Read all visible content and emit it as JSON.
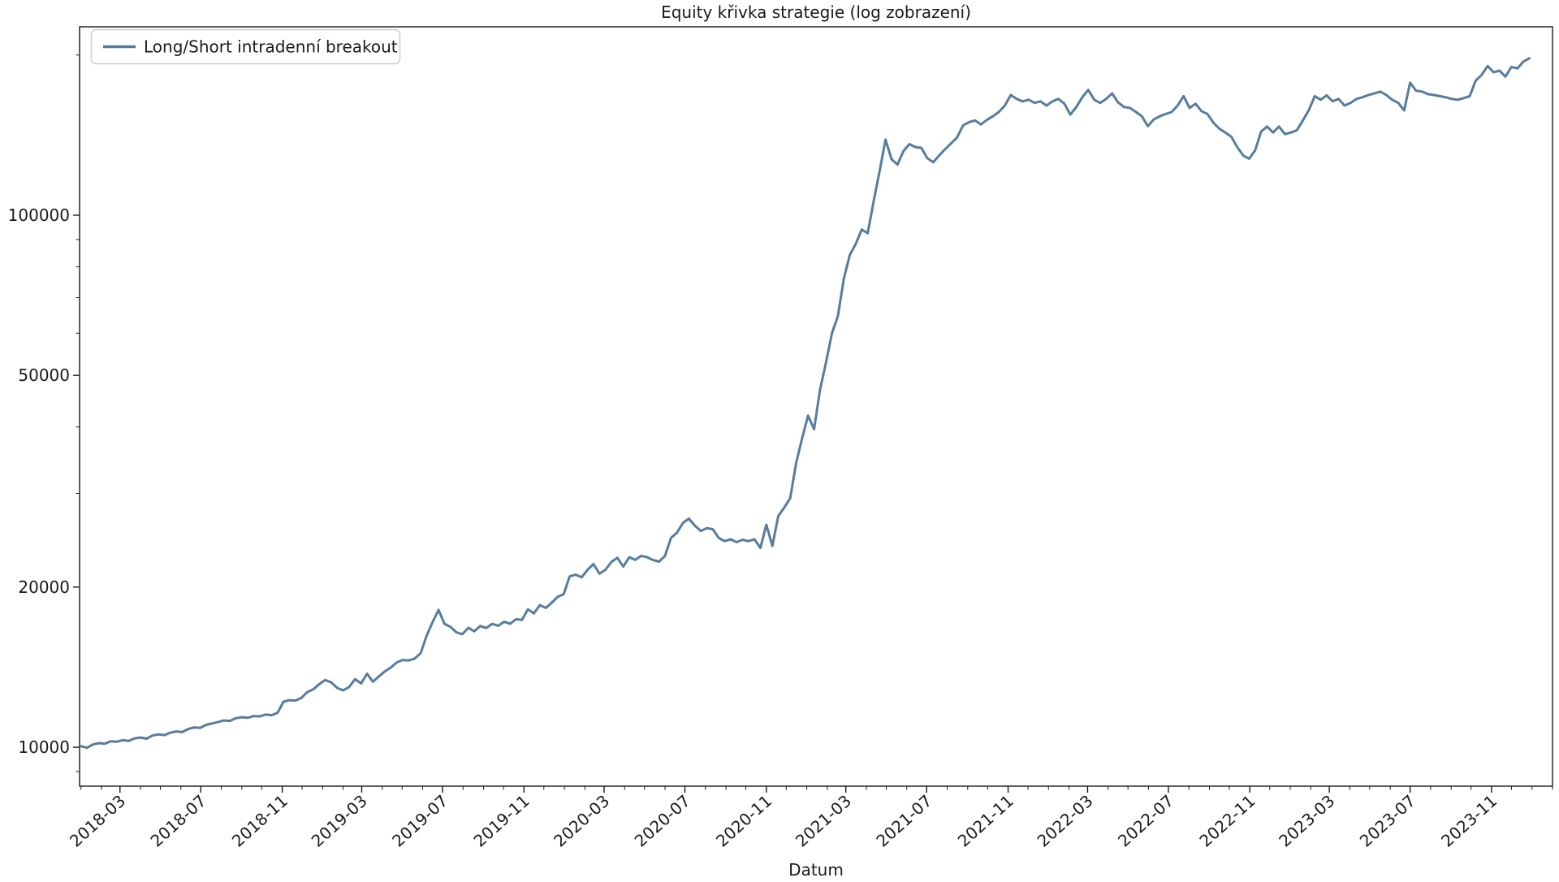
{
  "figure": {
    "title": "Equity křivka strategie (log zobrazení)",
    "x_axis_label": "Datum",
    "background_color": "#ffffff",
    "axis_color": "#1a1a1a",
    "legend": {
      "label": "Long/Short intradenní breakout",
      "swatch_color": "#567d9e"
    },
    "y_tick_labels": [
      "10000",
      "20000",
      "50000",
      "100000"
    ],
    "x_tick_labels": [
      "2018-03",
      "2018-07",
      "2018-11",
      "2019-03",
      "2019-07",
      "2019-11",
      "2020-03",
      "2020-07",
      "2020-11",
      "2021-03",
      "2021-07",
      "2021-11",
      "2022-03",
      "2022-07",
      "2022-11",
      "2023-03",
      "2023-07",
      "2023-11"
    ]
  },
  "chart_data": {
    "type": "line",
    "title": "Equity křivka strategie (log zobrazení)",
    "xlabel": "Datum",
    "ylabel": "",
    "yscale": "log",
    "grid": false,
    "legend_position": "upper left",
    "x_axis_range": [
      "2017-12-30",
      "2024-02-01"
    ],
    "y_axis_range": [
      8450,
      226000
    ],
    "y_labeled_ticks": [
      10000,
      20000,
      50000,
      100000
    ],
    "y_minor_ticks": [
      9000,
      30000,
      40000,
      60000,
      70000,
      80000,
      90000,
      200000
    ],
    "x_major_tick_months": [
      "2018-03",
      "2018-07",
      "2018-11",
      "2019-03",
      "2019-07",
      "2019-11",
      "2020-03",
      "2020-07",
      "2020-11",
      "2021-03",
      "2021-07",
      "2021-11",
      "2022-03",
      "2022-07",
      "2022-11",
      "2023-03",
      "2023-07",
      "2023-11"
    ],
    "series": [
      {
        "name": "Long/Short intradenní breakout",
        "color": "#567d9e",
        "line_width": 3,
        "start_date": "2018-01-01",
        "interval_days": 9,
        "values": [
          10050,
          9980,
          10120,
          10180,
          10150,
          10260,
          10240,
          10310,
          10280,
          10390,
          10430,
          10380,
          10520,
          10570,
          10540,
          10650,
          10710,
          10680,
          10820,
          10900,
          10870,
          11020,
          11080,
          11160,
          11230,
          11210,
          11340,
          11390,
          11360,
          11450,
          11430,
          11520,
          11490,
          11610,
          12180,
          12260,
          12240,
          12380,
          12700,
          12850,
          13150,
          13380,
          13240,
          12930,
          12790,
          12980,
          13430,
          13180,
          13750,
          13280,
          13590,
          13890,
          14120,
          14440,
          14590,
          14560,
          14680,
          15020,
          16200,
          17180,
          18120,
          17060,
          16840,
          16440,
          16310,
          16770,
          16520,
          16900,
          16750,
          17060,
          16920,
          17210,
          17060,
          17400,
          17360,
          18170,
          17850,
          18500,
          18280,
          18700,
          19180,
          19390,
          20950,
          21100,
          20870,
          21550,
          22100,
          21200,
          21550,
          22300,
          22700,
          21850,
          22760,
          22500,
          22900,
          22760,
          22480,
          22330,
          22900,
          24750,
          25300,
          26400,
          26900,
          26100,
          25500,
          25800,
          25700,
          24750,
          24400,
          24600,
          24300,
          24550,
          24400,
          24600,
          23700,
          26200,
          23900,
          27200,
          28200,
          29400,
          34200,
          38100,
          42000,
          39600,
          47000,
          52800,
          60000,
          64600,
          76100,
          84200,
          88300,
          94000,
          92500,
          106300,
          121000,
          138700,
          127400,
          124500,
          132000,
          136000,
          134300,
          133800,
          128000,
          125800,
          129500,
          133100,
          136500,
          140000,
          147500,
          149600,
          150700,
          148100,
          151000,
          153400,
          156300,
          160700,
          168200,
          165400,
          163700,
          164800,
          162600,
          163700,
          160700,
          163700,
          165400,
          162000,
          154500,
          159700,
          166600,
          172000,
          164800,
          162600,
          165400,
          169400,
          163000,
          159700,
          159100,
          156300,
          153400,
          147000,
          151400,
          153400,
          155000,
          156300,
          160700,
          167400,
          159100,
          162000,
          156900,
          155000,
          149200,
          145400,
          143000,
          140500,
          134200,
          129500,
          127700,
          132400,
          143600,
          146800,
          143000,
          146800,
          142000,
          143000,
          144400,
          150700,
          157400,
          167400,
          164800,
          168000,
          163700,
          165400,
          160700,
          162600,
          165400,
          166600,
          168200,
          169400,
          170700,
          168200,
          164800,
          162600,
          157400,
          177400,
          171400,
          170700,
          168900,
          168200,
          167400,
          166600,
          165400,
          164800,
          166000,
          167400,
          179000,
          183500,
          190700,
          185600,
          186900,
          182200,
          190000,
          188800,
          194400,
          197200
        ]
      }
    ]
  }
}
